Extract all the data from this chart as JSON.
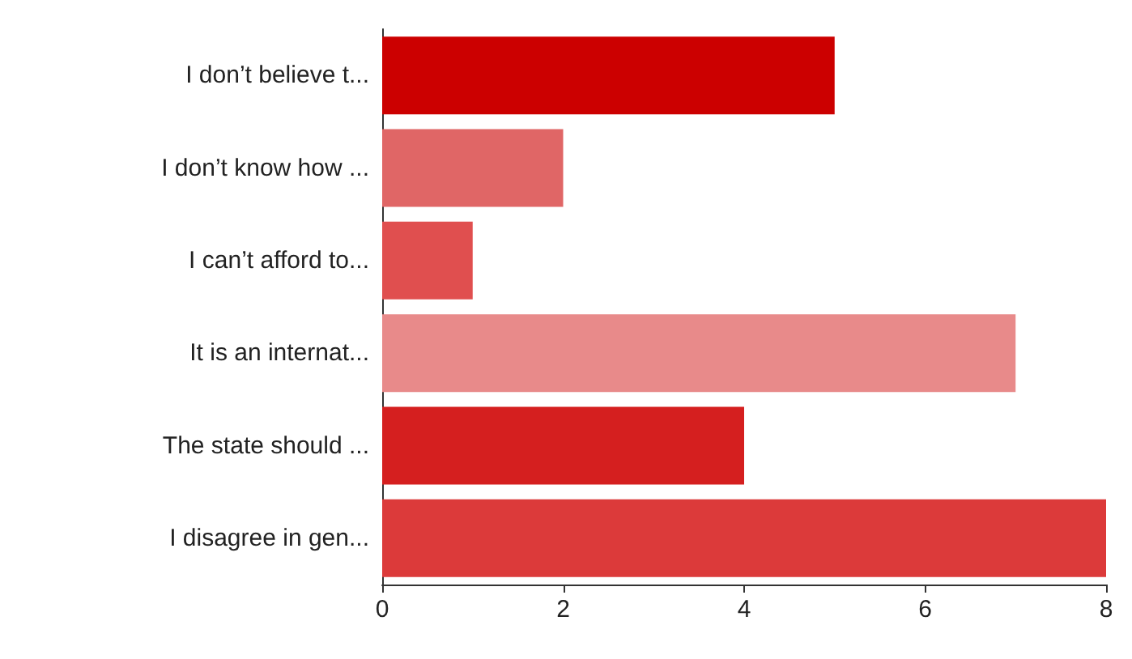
{
  "chart_data": {
    "type": "bar",
    "orientation": "horizontal",
    "categories": [
      "I don’t believe t...",
      "I don’t know how ...",
      "I can’t afford to...",
      "It is an internat...",
      "The state should ...",
      "I disagree in gen..."
    ],
    "values": [
      5,
      2,
      1,
      7,
      4,
      8
    ],
    "colors": [
      "#cc0000",
      "#e06666",
      "#e04f4f",
      "#e88a8a",
      "#d51f1f",
      "#dc3a3a"
    ],
    "xlim": [
      0,
      8
    ],
    "xticks": [
      0,
      2,
      4,
      6,
      8
    ],
    "grid": false
  }
}
